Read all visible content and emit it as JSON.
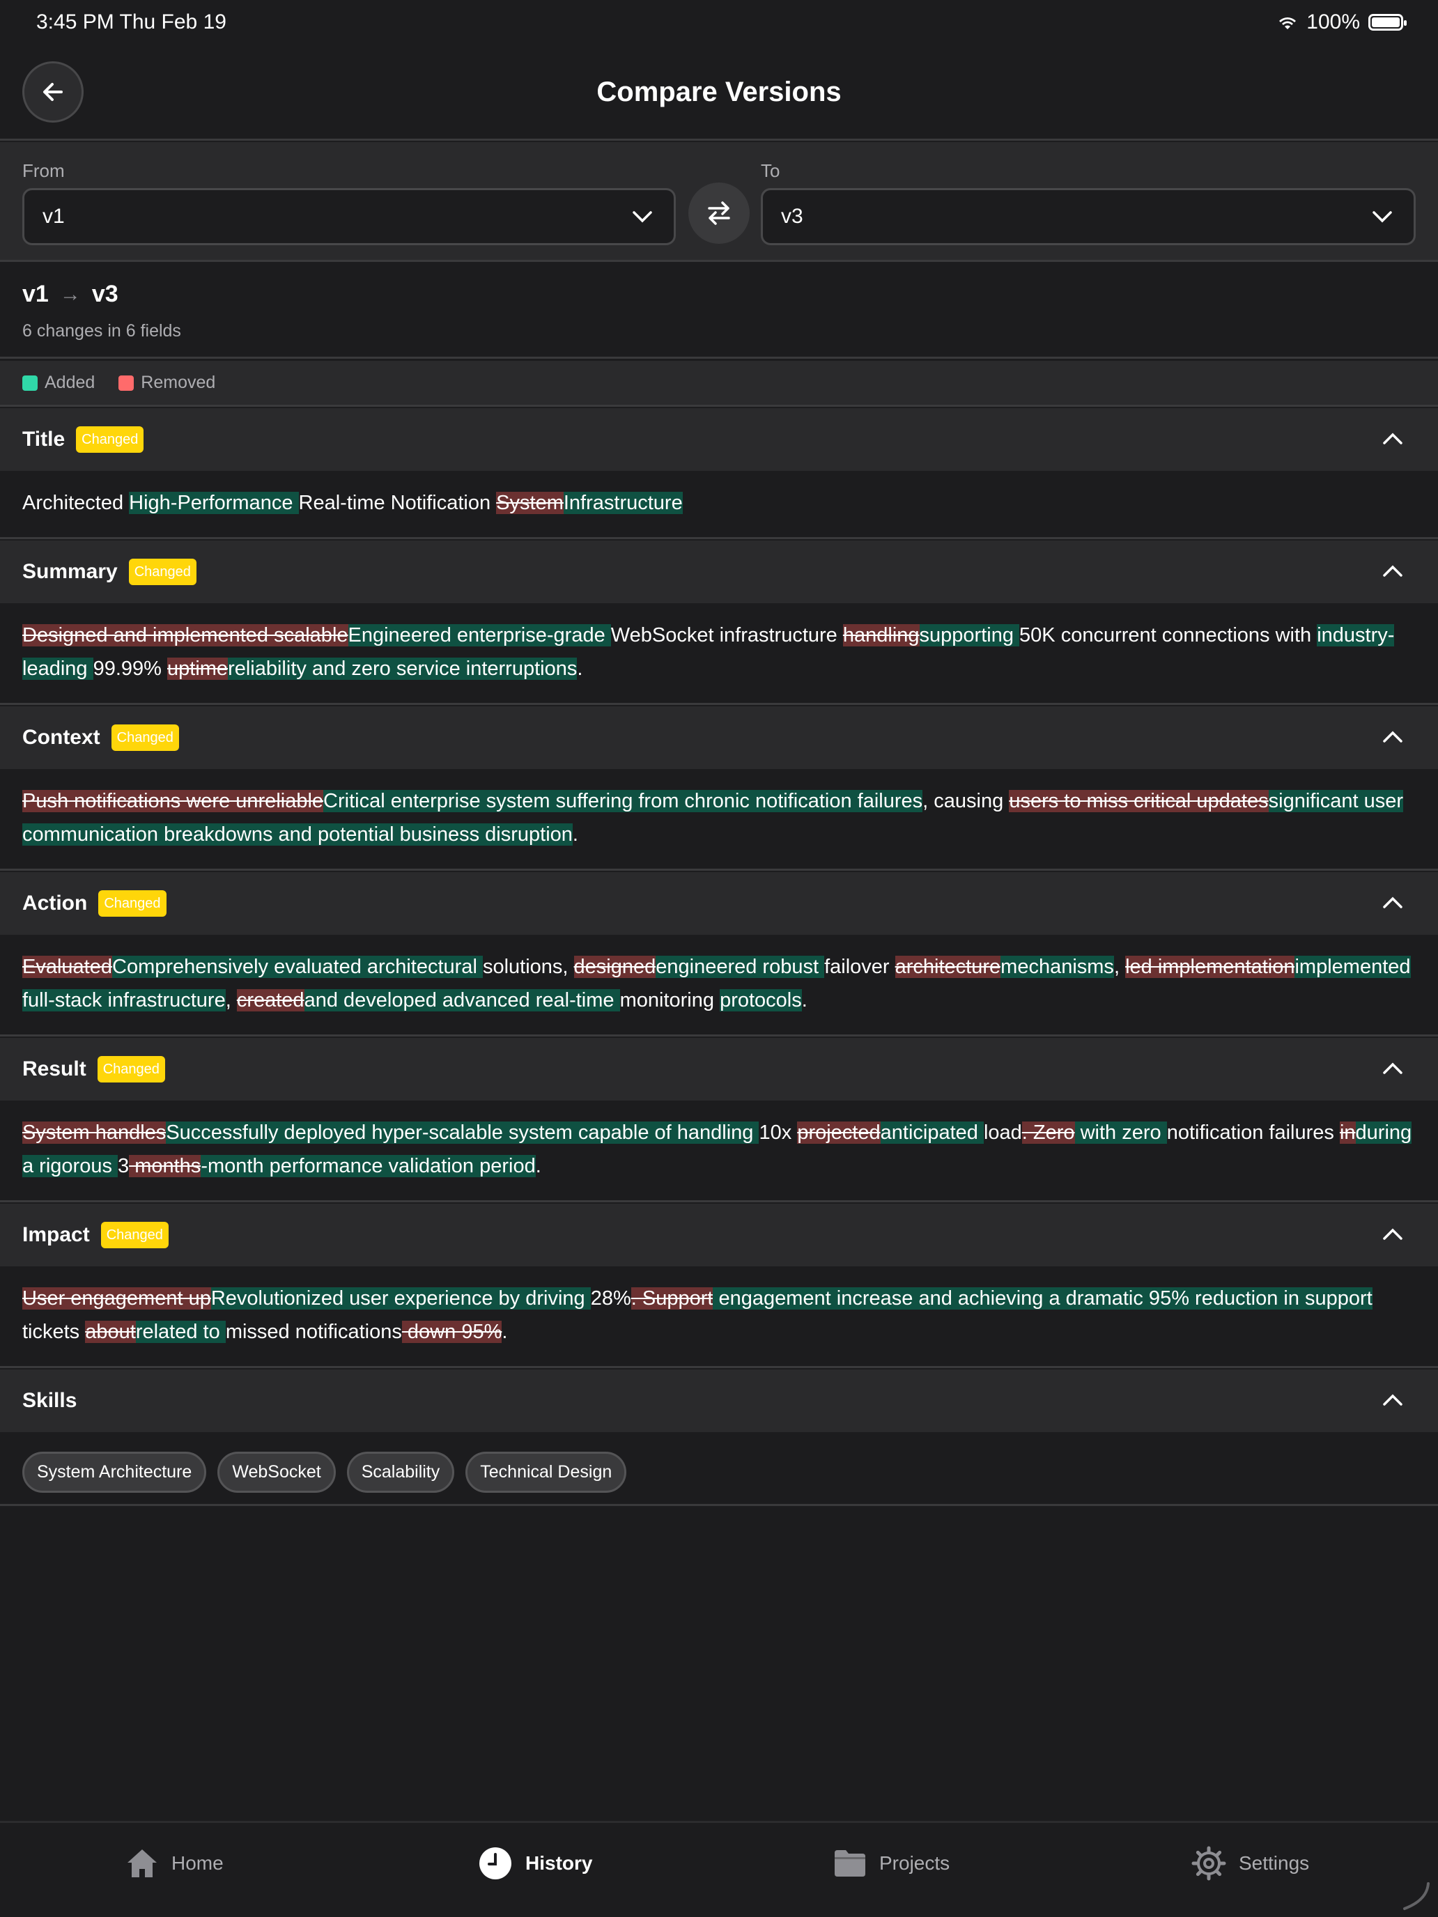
{
  "status_bar": {
    "time": "3:45 PM   Thu Feb 19",
    "battery": "100%"
  },
  "nav": {
    "title": "Compare Versions"
  },
  "selector": {
    "from_label": "From",
    "from_value": "v1",
    "to_label": "To",
    "to_value": "v3"
  },
  "summary": {
    "from": "v1",
    "arrow": "→",
    "to": "v3",
    "change_count": "6 changes in 6 fields"
  },
  "legend": {
    "added": "Added",
    "removed": "Removed"
  },
  "colors": {
    "added": "#0f5142",
    "removed": "#6b3131",
    "added_swatch": "#30d8a8",
    "removed_swatch": "#ff6b6b",
    "badge": "#ffd60a"
  },
  "sections": {
    "title": {
      "label": "Title",
      "badge": "Changed",
      "segments": [
        {
          "t": "Architected ",
          "k": "same"
        },
        {
          "t": "High-Performance ",
          "k": "add"
        },
        {
          "t": "Real-time Notification ",
          "k": "same"
        },
        {
          "t": "System",
          "k": "rem"
        },
        {
          "t": "Infrastructure",
          "k": "add"
        }
      ]
    },
    "summary": {
      "label": "Summary",
      "badge": "Changed",
      "segments": [
        {
          "t": "Designed and implemented scalable",
          "k": "rem"
        },
        {
          "t": "Engineered enterprise-grade ",
          "k": "add"
        },
        {
          "t": "WebSocket infrastructure ",
          "k": "same"
        },
        {
          "t": "handling",
          "k": "rem"
        },
        {
          "t": "supporting ",
          "k": "add"
        },
        {
          "t": "50K concurrent connections with ",
          "k": "same"
        },
        {
          "t": "industry-leading ",
          "k": "add"
        },
        {
          "t": "99.99% ",
          "k": "same"
        },
        {
          "t": "uptime",
          "k": "rem"
        },
        {
          "t": "reliability and zero service interruptions",
          "k": "add"
        },
        {
          "t": ".",
          "k": "same"
        }
      ]
    },
    "context": {
      "label": "Context",
      "badge": "Changed",
      "segments": [
        {
          "t": "Push notifications were unreliable",
          "k": "rem"
        },
        {
          "t": "Critical enterprise system suffering from chronic notification failures",
          "k": "add"
        },
        {
          "t": ", causing ",
          "k": "same"
        },
        {
          "t": "users to miss critical updates",
          "k": "rem"
        },
        {
          "t": "significant user communication breakdowns and potential business disruption",
          "k": "add"
        },
        {
          "t": ".",
          "k": "same"
        }
      ]
    },
    "action": {
      "label": "Action",
      "badge": "Changed",
      "segments": [
        {
          "t": "Evaluated",
          "k": "rem"
        },
        {
          "t": "Comprehensively evaluated architectural ",
          "k": "add"
        },
        {
          "t": "solutions, ",
          "k": "same"
        },
        {
          "t": "designed",
          "k": "rem"
        },
        {
          "t": "engineered robust ",
          "k": "add"
        },
        {
          "t": "failover ",
          "k": "same"
        },
        {
          "t": "architecture",
          "k": "rem"
        },
        {
          "t": "mechanisms",
          "k": "add"
        },
        {
          "t": ", ",
          "k": "same"
        },
        {
          "t": "led implementation",
          "k": "rem"
        },
        {
          "t": "implemented full-stack infrastructure",
          "k": "add"
        },
        {
          "t": ", ",
          "k": "same"
        },
        {
          "t": "created",
          "k": "rem"
        },
        {
          "t": "and developed advanced real-time ",
          "k": "add"
        },
        {
          "t": "monitoring ",
          "k": "same"
        },
        {
          "t": "protocols",
          "k": "add"
        },
        {
          "t": ".",
          "k": "same"
        }
      ]
    },
    "result": {
      "label": "Result",
      "badge": "Changed",
      "segments": [
        {
          "t": "System handles",
          "k": "rem"
        },
        {
          "t": "Successfully deployed hyper-scalable system capable of handling ",
          "k": "add"
        },
        {
          "t": "10x ",
          "k": "same"
        },
        {
          "t": "projected",
          "k": "rem"
        },
        {
          "t": "anticipated ",
          "k": "add"
        },
        {
          "t": "load",
          "k": "same"
        },
        {
          "t": ". Zero",
          "k": "rem"
        },
        {
          "t": " with zero ",
          "k": "add"
        },
        {
          "t": "notification failures ",
          "k": "same"
        },
        {
          "t": "in",
          "k": "rem"
        },
        {
          "t": "during a rigorous ",
          "k": "add"
        },
        {
          "t": "3",
          "k": "same"
        },
        {
          "t": " months",
          "k": "rem"
        },
        {
          "t": "-month performance validation period",
          "k": "add"
        },
        {
          "t": ".",
          "k": "same"
        }
      ]
    },
    "impact": {
      "label": "Impact",
      "badge": "Changed",
      "segments": [
        {
          "t": "User engagement up",
          "k": "rem"
        },
        {
          "t": "Revolutionized user experience by driving ",
          "k": "add"
        },
        {
          "t": "28%",
          "k": "same"
        },
        {
          "t": ". Support",
          "k": "rem"
        },
        {
          "t": " engagement increase and achieving a dramatic 95% reduction in support",
          "k": "add"
        },
        {
          "t": " tickets ",
          "k": "same"
        },
        {
          "t": "about",
          "k": "rem"
        },
        {
          "t": "related to ",
          "k": "add"
        },
        {
          "t": "missed notifications",
          "k": "same"
        },
        {
          "t": " down 95%",
          "k": "rem"
        },
        {
          "t": ".",
          "k": "same"
        }
      ]
    },
    "skills": {
      "label": "Skills",
      "chips": [
        "System Architecture",
        "WebSocket",
        "Scalability",
        "Technical Design"
      ]
    }
  },
  "tab_bar": {
    "home": "Home",
    "history": "History",
    "projects": "Projects",
    "settings": "Settings",
    "active": "History"
  }
}
